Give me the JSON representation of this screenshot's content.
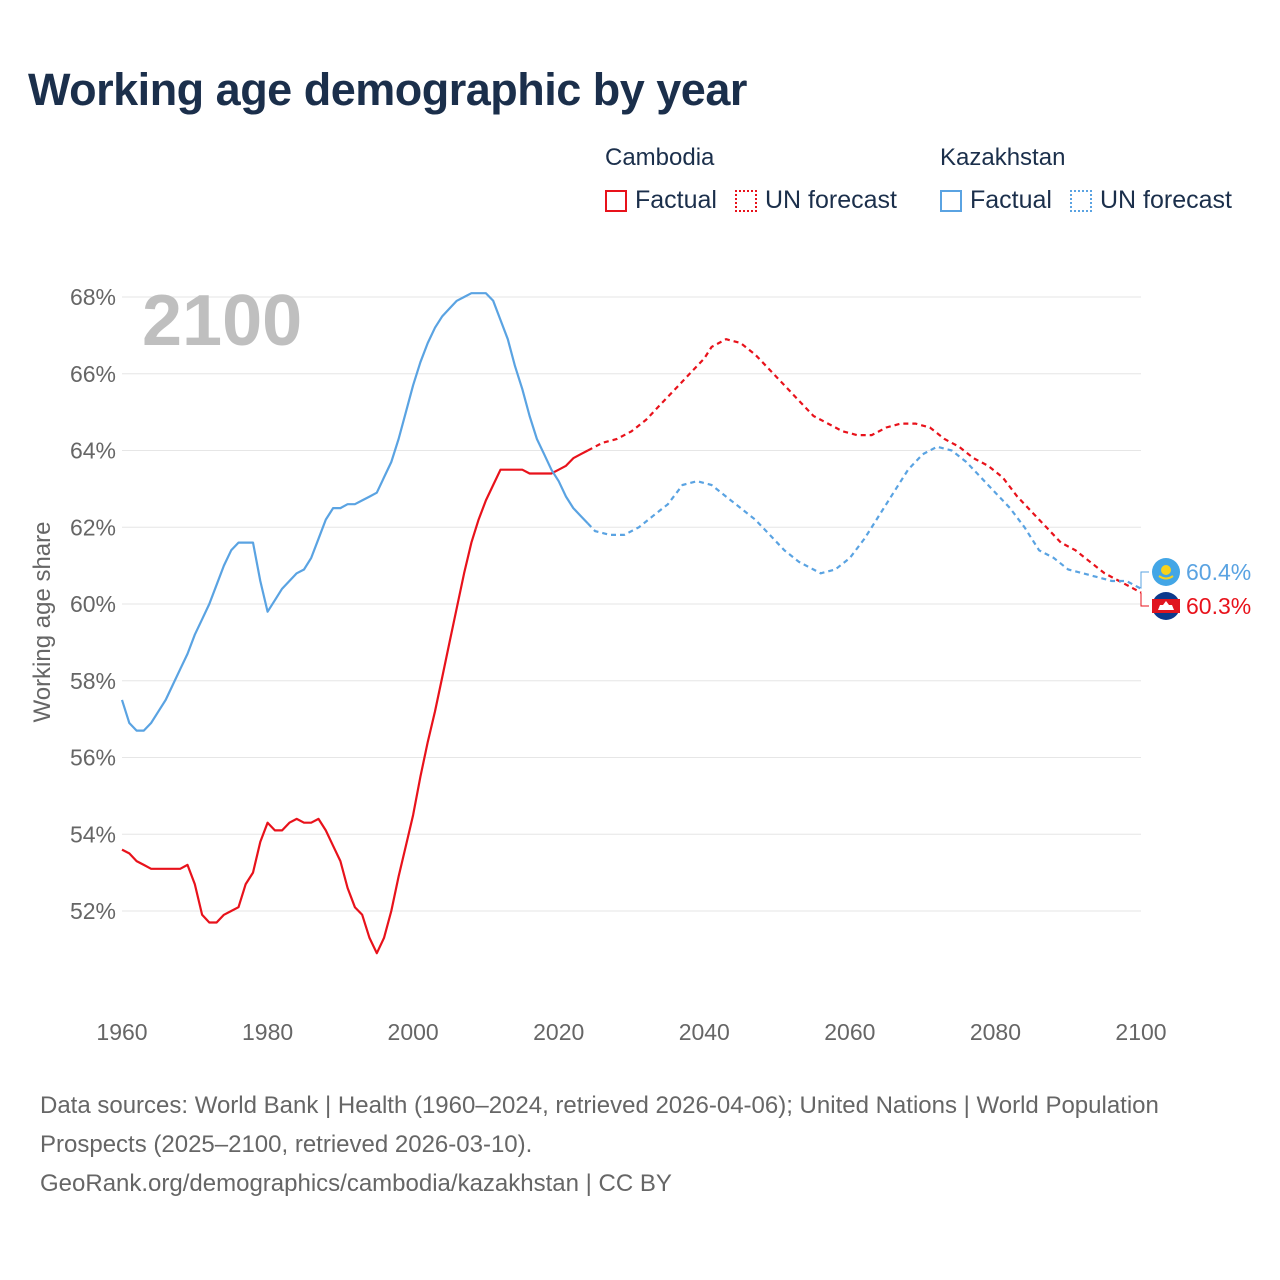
{
  "title": "Working age demographic by year",
  "legend": {
    "groups": [
      {
        "name": "Cambodia",
        "factual_label": "Factual",
        "forecast_label": "UN forecast",
        "color": "#e8121b"
      },
      {
        "name": "Kazakhstan",
        "factual_label": "Factual",
        "forecast_label": "UN forecast",
        "color": "#5aa3e2"
      }
    ]
  },
  "chart_data": {
    "type": "line",
    "title": "Working age demographic by year",
    "ylabel": "Working age share",
    "xlabel": "",
    "xlim": [
      1960,
      2100
    ],
    "ylim": [
      50,
      68
    ],
    "x_ticks": [
      1960,
      1980,
      2000,
      2020,
      2040,
      2060,
      2080,
      2100
    ],
    "x_tick_labels": [
      "1960",
      "1980",
      "2000",
      "2020",
      "2040",
      "2060",
      "2080",
      "2100"
    ],
    "y_ticks": [
      52,
      54,
      56,
      58,
      60,
      62,
      64,
      66,
      68
    ],
    "y_tick_labels": [
      "52%",
      "54%",
      "56%",
      "58%",
      "60%",
      "62%",
      "64%",
      "66%",
      "68%"
    ],
    "grid": true,
    "year_watermark": "2100",
    "factual_end": 2024,
    "series": [
      {
        "name": "Cambodia",
        "color": "#e8121b",
        "end_label": "60.3%",
        "points": [
          [
            1960,
            53.6
          ],
          [
            1961,
            53.5
          ],
          [
            1962,
            53.3
          ],
          [
            1963,
            53.2
          ],
          [
            1964,
            53.1
          ],
          [
            1965,
            53.1
          ],
          [
            1966,
            53.1
          ],
          [
            1967,
            53.1
          ],
          [
            1968,
            53.1
          ],
          [
            1969,
            53.2
          ],
          [
            1970,
            52.7
          ],
          [
            1971,
            51.9
          ],
          [
            1972,
            51.7
          ],
          [
            1973,
            51.7
          ],
          [
            1974,
            51.9
          ],
          [
            1975,
            52.0
          ],
          [
            1976,
            52.1
          ],
          [
            1977,
            52.7
          ],
          [
            1978,
            53.0
          ],
          [
            1979,
            53.8
          ],
          [
            1980,
            54.3
          ],
          [
            1981,
            54.1
          ],
          [
            1982,
            54.1
          ],
          [
            1983,
            54.3
          ],
          [
            1984,
            54.4
          ],
          [
            1985,
            54.3
          ],
          [
            1986,
            54.3
          ],
          [
            1987,
            54.4
          ],
          [
            1988,
            54.1
          ],
          [
            1989,
            53.7
          ],
          [
            1990,
            53.3
          ],
          [
            1991,
            52.6
          ],
          [
            1992,
            52.1
          ],
          [
            1993,
            51.9
          ],
          [
            1994,
            51.3
          ],
          [
            1995,
            50.9
          ],
          [
            1996,
            51.3
          ],
          [
            1997,
            52.0
          ],
          [
            1998,
            52.9
          ],
          [
            1999,
            53.7
          ],
          [
            2000,
            54.5
          ],
          [
            2001,
            55.5
          ],
          [
            2002,
            56.4
          ],
          [
            2003,
            57.2
          ],
          [
            2004,
            58.1
          ],
          [
            2005,
            59.0
          ],
          [
            2006,
            59.9
          ],
          [
            2007,
            60.8
          ],
          [
            2008,
            61.6
          ],
          [
            2009,
            62.2
          ],
          [
            2010,
            62.7
          ],
          [
            2011,
            63.1
          ],
          [
            2012,
            63.5
          ],
          [
            2013,
            63.5
          ],
          [
            2014,
            63.5
          ],
          [
            2015,
            63.5
          ],
          [
            2016,
            63.4
          ],
          [
            2017,
            63.4
          ],
          [
            2018,
            63.4
          ],
          [
            2019,
            63.4
          ],
          [
            2020,
            63.5
          ],
          [
            2021,
            63.6
          ],
          [
            2022,
            63.8
          ],
          [
            2023,
            63.9
          ],
          [
            2024,
            64.0
          ],
          [
            2025,
            64.1
          ],
          [
            2026,
            64.2
          ],
          [
            2028,
            64.3
          ],
          [
            2030,
            64.5
          ],
          [
            2032,
            64.8
          ],
          [
            2034,
            65.2
          ],
          [
            2036,
            65.6
          ],
          [
            2038,
            66.0
          ],
          [
            2040,
            66.4
          ],
          [
            2041,
            66.7
          ],
          [
            2043,
            66.9
          ],
          [
            2045,
            66.8
          ],
          [
            2047,
            66.5
          ],
          [
            2049,
            66.1
          ],
          [
            2051,
            65.7
          ],
          [
            2053,
            65.3
          ],
          [
            2055,
            64.9
          ],
          [
            2057,
            64.7
          ],
          [
            2059,
            64.5
          ],
          [
            2061,
            64.4
          ],
          [
            2063,
            64.4
          ],
          [
            2065,
            64.6
          ],
          [
            2067,
            64.7
          ],
          [
            2069,
            64.7
          ],
          [
            2071,
            64.6
          ],
          [
            2073,
            64.3
          ],
          [
            2075,
            64.1
          ],
          [
            2077,
            63.8
          ],
          [
            2079,
            63.6
          ],
          [
            2081,
            63.3
          ],
          [
            2083,
            62.8
          ],
          [
            2085,
            62.4
          ],
          [
            2087,
            62.0
          ],
          [
            2089,
            61.6
          ],
          [
            2091,
            61.4
          ],
          [
            2093,
            61.1
          ],
          [
            2095,
            60.8
          ],
          [
            2097,
            60.6
          ],
          [
            2099,
            60.4
          ],
          [
            2100,
            60.3
          ]
        ]
      },
      {
        "name": "Kazakhstan",
        "color": "#5aa3e2",
        "end_label": "60.4%",
        "points": [
          [
            1960,
            57.5
          ],
          [
            1961,
            56.9
          ],
          [
            1962,
            56.7
          ],
          [
            1963,
            56.7
          ],
          [
            1964,
            56.9
          ],
          [
            1965,
            57.2
          ],
          [
            1966,
            57.5
          ],
          [
            1967,
            57.9
          ],
          [
            1968,
            58.3
          ],
          [
            1969,
            58.7
          ],
          [
            1970,
            59.2
          ],
          [
            1971,
            59.6
          ],
          [
            1972,
            60.0
          ],
          [
            1973,
            60.5
          ],
          [
            1974,
            61.0
          ],
          [
            1975,
            61.4
          ],
          [
            1976,
            61.6
          ],
          [
            1977,
            61.6
          ],
          [
            1978,
            61.6
          ],
          [
            1979,
            60.6
          ],
          [
            1980,
            59.8
          ],
          [
            1981,
            60.1
          ],
          [
            1982,
            60.4
          ],
          [
            1983,
            60.6
          ],
          [
            1984,
            60.8
          ],
          [
            1985,
            60.9
          ],
          [
            1986,
            61.2
          ],
          [
            1987,
            61.7
          ],
          [
            1988,
            62.2
          ],
          [
            1989,
            62.5
          ],
          [
            1990,
            62.5
          ],
          [
            1991,
            62.6
          ],
          [
            1992,
            62.6
          ],
          [
            1993,
            62.7
          ],
          [
            1994,
            62.8
          ],
          [
            1995,
            62.9
          ],
          [
            1996,
            63.3
          ],
          [
            1997,
            63.7
          ],
          [
            1998,
            64.3
          ],
          [
            1999,
            65.0
          ],
          [
            2000,
            65.7
          ],
          [
            2001,
            66.3
          ],
          [
            2002,
            66.8
          ],
          [
            2003,
            67.2
          ],
          [
            2004,
            67.5
          ],
          [
            2005,
            67.7
          ],
          [
            2006,
            67.9
          ],
          [
            2007,
            68.0
          ],
          [
            2008,
            68.1
          ],
          [
            2009,
            68.1
          ],
          [
            2010,
            68.1
          ],
          [
            2011,
            67.9
          ],
          [
            2012,
            67.4
          ],
          [
            2013,
            66.9
          ],
          [
            2014,
            66.2
          ],
          [
            2015,
            65.6
          ],
          [
            2016,
            64.9
          ],
          [
            2017,
            64.3
          ],
          [
            2018,
            63.9
          ],
          [
            2019,
            63.5
          ],
          [
            2020,
            63.2
          ],
          [
            2021,
            62.8
          ],
          [
            2022,
            62.5
          ],
          [
            2023,
            62.3
          ],
          [
            2024,
            62.1
          ],
          [
            2025,
            61.9
          ],
          [
            2027,
            61.8
          ],
          [
            2029,
            61.8
          ],
          [
            2031,
            62.0
          ],
          [
            2033,
            62.3
          ],
          [
            2035,
            62.6
          ],
          [
            2037,
            63.1
          ],
          [
            2039,
            63.2
          ],
          [
            2041,
            63.1
          ],
          [
            2043,
            62.8
          ],
          [
            2045,
            62.5
          ],
          [
            2047,
            62.2
          ],
          [
            2049,
            61.8
          ],
          [
            2051,
            61.4
          ],
          [
            2053,
            61.1
          ],
          [
            2055,
            60.9
          ],
          [
            2056,
            60.8
          ],
          [
            2058,
            60.9
          ],
          [
            2060,
            61.2
          ],
          [
            2062,
            61.7
          ],
          [
            2064,
            62.3
          ],
          [
            2066,
            62.9
          ],
          [
            2068,
            63.5
          ],
          [
            2070,
            63.9
          ],
          [
            2072,
            64.1
          ],
          [
            2074,
            64.0
          ],
          [
            2076,
            63.7
          ],
          [
            2078,
            63.3
          ],
          [
            2080,
            62.9
          ],
          [
            2082,
            62.5
          ],
          [
            2084,
            62.0
          ],
          [
            2086,
            61.4
          ],
          [
            2088,
            61.2
          ],
          [
            2090,
            60.9
          ],
          [
            2092,
            60.8
          ],
          [
            2094,
            60.7
          ],
          [
            2096,
            60.6
          ],
          [
            2098,
            60.6
          ],
          [
            2100,
            60.4
          ]
        ]
      }
    ]
  },
  "footer": {
    "sources": "Data sources: World Bank | Health (1960–2024, retrieved 2026-04-06); United Nations | World Population Prospects (2025–2100, retrieved 2026-03-10).",
    "credit": "GeoRank.org/demographics/cambodia/kazakhstan | CC BY"
  }
}
